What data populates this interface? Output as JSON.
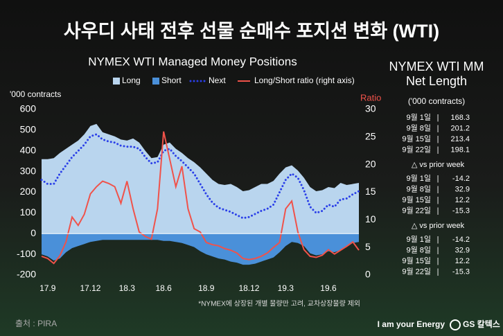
{
  "page": {
    "title": "사우디 사태 전후 선물 순매수 포지션 변화 (WTI)",
    "footnote": "*NYMEX에 상장된 개별 물량만 고려, 교차상장물량 제외",
    "source": "출처 : PIRA",
    "slogan": "I am your Energy",
    "brand": "GS 칼텍스"
  },
  "chart_data": {
    "type": "combo",
    "title": "NYMEX WTI Managed Money Positions",
    "y_label": "'000 contracts",
    "y2_label": "Ratio",
    "categories": [
      null,
      "17.9",
      null,
      null,
      null,
      null,
      null,
      null,
      "17.12",
      null,
      null,
      null,
      null,
      null,
      "18.3",
      null,
      null,
      null,
      null,
      null,
      "18.6",
      null,
      null,
      null,
      null,
      null,
      null,
      "18.9",
      null,
      null,
      null,
      null,
      null,
      null,
      "18.12",
      null,
      null,
      null,
      null,
      null,
      "19.3",
      null,
      null,
      null,
      null,
      null,
      null,
      "19.6",
      null,
      null,
      null,
      null,
      null
    ],
    "ylim": [
      -200,
      600
    ],
    "yticks": [
      -200,
      -100,
      0,
      100,
      200,
      300,
      400,
      500,
      600
    ],
    "y2lim": [
      0,
      30
    ],
    "y2ticks": [
      0,
      5,
      10,
      15,
      20,
      25,
      30
    ],
    "grid": false,
    "series": [
      {
        "name": "Long",
        "type": "area",
        "color": "#b9d5ee",
        "values": [
          360,
          360,
          365,
          390,
          410,
          430,
          450,
          480,
          520,
          530,
          490,
          480,
          470,
          455,
          450,
          460,
          440,
          400,
          365,
          370,
          430,
          440,
          410,
          390,
          365,
          345,
          320,
          290,
          260,
          240,
          235,
          240,
          225,
          205,
          210,
          225,
          240,
          240,
          255,
          290,
          320,
          330,
          305,
          270,
          225,
          205,
          210,
          225,
          220,
          245,
          235,
          240,
          245
        ]
      },
      {
        "name": "Short",
        "type": "area",
        "color": "#4a90d9",
        "values": [
          -100,
          -110,
          -130,
          -120,
          -90,
          -70,
          -60,
          -50,
          -40,
          -35,
          -30,
          -30,
          -30,
          -30,
          -30,
          -30,
          -30,
          -30,
          -30,
          -30,
          -35,
          -35,
          -40,
          -45,
          -55,
          -65,
          -85,
          -100,
          -110,
          -120,
          -125,
          -135,
          -140,
          -150,
          -150,
          -145,
          -135,
          -125,
          -115,
          -90,
          -60,
          -40,
          -45,
          -60,
          -95,
          -105,
          -100,
          -85,
          -90,
          -80,
          -65,
          -45,
          -40
        ]
      },
      {
        "name": "Next",
        "type": "dotted-line",
        "color": "#2a3fe8",
        "values": [
          260,
          240,
          240,
          290,
          330,
          370,
          400,
          430,
          470,
          480,
          455,
          445,
          440,
          425,
          420,
          420,
          410,
          370,
          340,
          345,
          400,
          410,
          375,
          350,
          320,
          290,
          240,
          190,
          150,
          125,
          115,
          105,
          90,
          75,
          80,
          95,
          110,
          120,
          140,
          200,
          260,
          290,
          270,
          210,
          130,
          100,
          110,
          140,
          130,
          165,
          170,
          190,
          205
        ]
      },
      {
        "name": "Long/Short ratio (right axis)",
        "type": "line",
        "axis": "y2",
        "color": "#f0524a",
        "values": [
          3.4,
          3.0,
          2.1,
          3.5,
          6,
          10.5,
          9,
          11,
          14.7,
          16,
          17,
          16.6,
          16,
          13,
          17,
          12,
          7.8,
          7,
          6.5,
          12,
          26,
          21,
          16,
          19.7,
          12,
          8.4,
          7.8,
          5.9,
          5.5,
          5.3,
          4.8,
          4.5,
          4,
          3,
          2.8,
          3,
          3.4,
          4,
          5,
          5.9,
          12,
          13.4,
          7.8,
          4.6,
          3.4,
          3.2,
          3.6,
          4.6,
          3.8,
          4.5,
          5.2,
          6,
          4.5
        ]
      }
    ]
  },
  "net_length_panel": {
    "title_lines": [
      "NYMEX WTI MM",
      "Net Length"
    ],
    "unit": "('000 contracts)",
    "separator": "|",
    "blocks": [
      {
        "heading": null,
        "rows": [
          {
            "date": "9월 1일",
            "value": 168.3
          },
          {
            "date": "9월 8일",
            "value": 201.2
          },
          {
            "date": "9월 15일",
            "value": 213.4
          },
          {
            "date": "9월 22일",
            "value": 198.1
          }
        ]
      },
      {
        "heading": "△ vs prior week",
        "rows": [
          {
            "date": "9월 1일",
            "value": -14.2
          },
          {
            "date": "9월 8일",
            "value": 32.9
          },
          {
            "date": "9월 15일",
            "value": 12.2
          },
          {
            "date": "9월 22일",
            "value": -15.3
          }
        ]
      },
      {
        "heading": "△ vs prior week",
        "rows": [
          {
            "date": "9월 1일",
            "value": -14.2
          },
          {
            "date": "9월 8일",
            "value": 32.9
          },
          {
            "date": "9월 15일",
            "value": 12.2
          },
          {
            "date": "9월 22일",
            "value": -15.3
          }
        ]
      }
    ]
  }
}
